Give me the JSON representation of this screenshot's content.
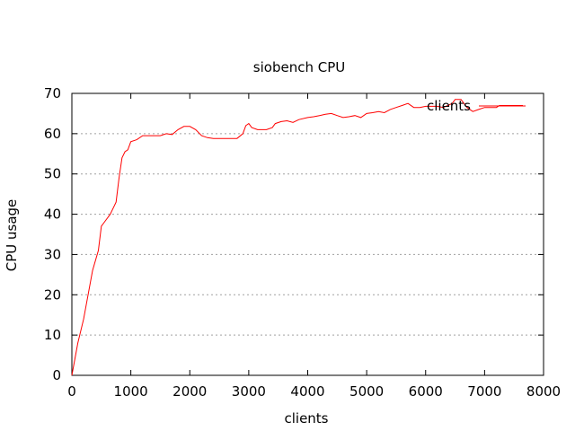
{
  "chart_data": {
    "type": "line",
    "title": "siobench CPU",
    "xlabel": "clients",
    "ylabel": "CPU usage",
    "xlim": [
      0,
      8000
    ],
    "ylim": [
      0,
      70
    ],
    "x_ticks": [
      "0",
      "1000",
      "2000",
      "3000",
      "4000",
      "5000",
      "6000",
      "7000",
      "8000"
    ],
    "y_ticks": [
      "0",
      "10",
      "20",
      "30",
      "40",
      "50",
      "60",
      "70"
    ],
    "grid": true,
    "legend_position": "top-right",
    "series": [
      {
        "name": "clients",
        "color": "#ff0000",
        "points": [
          [
            0,
            0
          ],
          [
            100,
            8
          ],
          [
            200,
            14
          ],
          [
            300,
            22
          ],
          [
            350,
            26
          ],
          [
            450,
            31
          ],
          [
            500,
            37
          ],
          [
            550,
            38
          ],
          [
            650,
            40
          ],
          [
            750,
            43
          ],
          [
            800,
            49
          ],
          [
            850,
            54
          ],
          [
            900,
            55.5
          ],
          [
            950,
            56
          ],
          [
            1000,
            58
          ],
          [
            1100,
            58.5
          ],
          [
            1200,
            59.5
          ],
          [
            1300,
            59.5
          ],
          [
            1500,
            59.5
          ],
          [
            1600,
            60
          ],
          [
            1700,
            59.8
          ],
          [
            1800,
            61
          ],
          [
            1900,
            61.8
          ],
          [
            2000,
            61.8
          ],
          [
            2100,
            61
          ],
          [
            2200,
            59.5
          ],
          [
            2300,
            59
          ],
          [
            2400,
            58.8
          ],
          [
            2600,
            58.8
          ],
          [
            2800,
            58.8
          ],
          [
            2900,
            60
          ],
          [
            2950,
            62
          ],
          [
            3000,
            62.5
          ],
          [
            3050,
            61.5
          ],
          [
            3150,
            61
          ],
          [
            3300,
            61
          ],
          [
            3400,
            61.5
          ],
          [
            3450,
            62.5
          ],
          [
            3550,
            63
          ],
          [
            3650,
            63.2
          ],
          [
            3750,
            62.8
          ],
          [
            3850,
            63.5
          ],
          [
            4000,
            64
          ],
          [
            4100,
            64.2
          ],
          [
            4200,
            64.5
          ],
          [
            4300,
            64.8
          ],
          [
            4400,
            65
          ],
          [
            4500,
            64.5
          ],
          [
            4600,
            64
          ],
          [
            4700,
            64.2
          ],
          [
            4800,
            64.5
          ],
          [
            4900,
            64
          ],
          [
            5000,
            65
          ],
          [
            5100,
            65.2
          ],
          [
            5200,
            65.5
          ],
          [
            5300,
            65.2
          ],
          [
            5400,
            66
          ],
          [
            5500,
            66.5
          ],
          [
            5600,
            67
          ],
          [
            5700,
            67.5
          ],
          [
            5800,
            66.5
          ],
          [
            5900,
            66.5
          ],
          [
            6000,
            66.8
          ],
          [
            6200,
            66.8
          ],
          [
            6300,
            66.5
          ],
          [
            6450,
            67.5
          ],
          [
            6500,
            68.5
          ],
          [
            6600,
            68.5
          ],
          [
            6700,
            66.5
          ],
          [
            6800,
            65.5
          ],
          [
            6900,
            66
          ],
          [
            7000,
            66.5
          ],
          [
            7200,
            66.5
          ],
          [
            7250,
            67
          ],
          [
            7400,
            67
          ],
          [
            7650,
            67
          ]
        ]
      }
    ]
  }
}
